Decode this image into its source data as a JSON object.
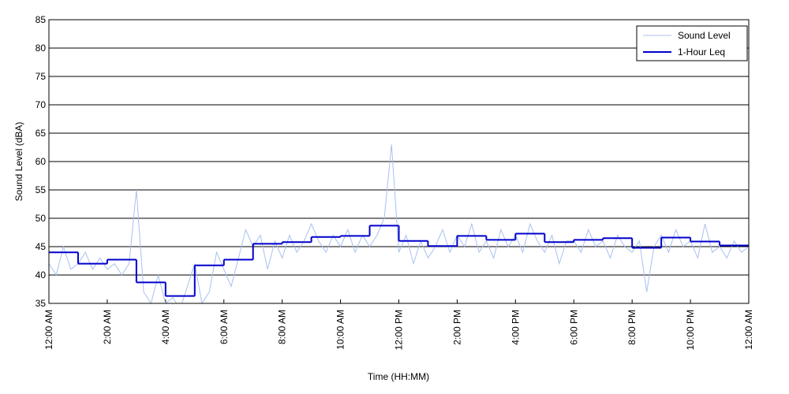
{
  "chart_data": {
    "type": "line",
    "xlabel": "Time (HH:MM)",
    "ylabel": "Sound Level (dBA)",
    "xlim": [
      0,
      24
    ],
    "ylim": [
      35,
      85
    ],
    "xticks": [
      {
        "value": 0,
        "label": "12:00 AM"
      },
      {
        "value": 2,
        "label": "2:00 AM"
      },
      {
        "value": 4,
        "label": "4:00 AM"
      },
      {
        "value": 6,
        "label": "6:00 AM"
      },
      {
        "value": 8,
        "label": "8:00 AM"
      },
      {
        "value": 10,
        "label": "10:00 AM"
      },
      {
        "value": 12,
        "label": "12:00 PM"
      },
      {
        "value": 14,
        "label": "2:00 PM"
      },
      {
        "value": 16,
        "label": "4:00 PM"
      },
      {
        "value": 18,
        "label": "6:00 PM"
      },
      {
        "value": 20,
        "label": "8:00 PM"
      },
      {
        "value": 22,
        "label": "10:00 PM"
      },
      {
        "value": 24,
        "label": "12:00 AM"
      }
    ],
    "yticks": [
      35,
      40,
      45,
      50,
      55,
      60,
      65,
      70,
      75,
      80,
      85
    ],
    "grid": true,
    "legend": "upper-right",
    "series": [
      {
        "name": "Sound Level",
        "color": "#a8c0f0",
        "style": "line",
        "x": [
          0,
          0.25,
          0.5,
          0.75,
          1,
          1.25,
          1.5,
          1.75,
          2,
          2.25,
          2.5,
          2.75,
          3,
          3.25,
          3.5,
          3.75,
          4,
          4.25,
          4.5,
          4.75,
          5,
          5.25,
          5.5,
          5.75,
          6,
          6.25,
          6.5,
          6.75,
          7,
          7.25,
          7.5,
          7.75,
          8,
          8.25,
          8.5,
          8.75,
          9,
          9.25,
          9.5,
          9.75,
          10,
          10.25,
          10.5,
          10.75,
          11,
          11.25,
          11.5,
          11.75,
          12,
          12.25,
          12.5,
          12.75,
          13,
          13.25,
          13.5,
          13.75,
          14,
          14.25,
          14.5,
          14.75,
          15,
          15.25,
          15.5,
          15.75,
          16,
          16.25,
          16.5,
          16.75,
          17,
          17.25,
          17.5,
          17.75,
          18,
          18.25,
          18.5,
          18.75,
          19,
          19.25,
          19.5,
          19.75,
          20,
          20.25,
          20.5,
          20.75,
          21,
          21.25,
          21.5,
          21.75,
          22,
          22.25,
          22.5,
          22.75,
          23,
          23.25,
          23.5,
          23.75,
          24
        ],
        "values": [
          42,
          40,
          45,
          41,
          42,
          44,
          41,
          43,
          41,
          42,
          40,
          42,
          55,
          37,
          35,
          40,
          35,
          36,
          34,
          38,
          42,
          35,
          37,
          44,
          41,
          38,
          43,
          48,
          45,
          47,
          41,
          46,
          43,
          47,
          44,
          46,
          49,
          46,
          44,
          47,
          45,
          48,
          44,
          47,
          45,
          47,
          50,
          63,
          44,
          47,
          42,
          46,
          43,
          45,
          48,
          44,
          47,
          45,
          49,
          44,
          46,
          43,
          48,
          45,
          47,
          44,
          49,
          46,
          44,
          47,
          42,
          46,
          46,
          44,
          48,
          45,
          46,
          43,
          47,
          45,
          44,
          46,
          37,
          45,
          47,
          44,
          48,
          45,
          46,
          43,
          49,
          44,
          45,
          43,
          46,
          44,
          45
        ]
      },
      {
        "name": "1-Hour Leq",
        "color": "#0000cc",
        "style": "step",
        "x": [
          0,
          1,
          2,
          3,
          4,
          5,
          6,
          7,
          8,
          9,
          10,
          11,
          12,
          13,
          14,
          15,
          16,
          17,
          18,
          19,
          20,
          21,
          22,
          23
        ],
        "values": [
          44.0,
          42.0,
          42.7,
          38.7,
          36.3,
          41.7,
          42.7,
          45.5,
          45.8,
          46.7,
          46.9,
          48.7,
          46.0,
          45.1,
          46.9,
          46.2,
          47.3,
          45.8,
          46.2,
          46.5,
          44.8,
          46.6,
          45.9,
          45.2
        ]
      }
    ]
  }
}
